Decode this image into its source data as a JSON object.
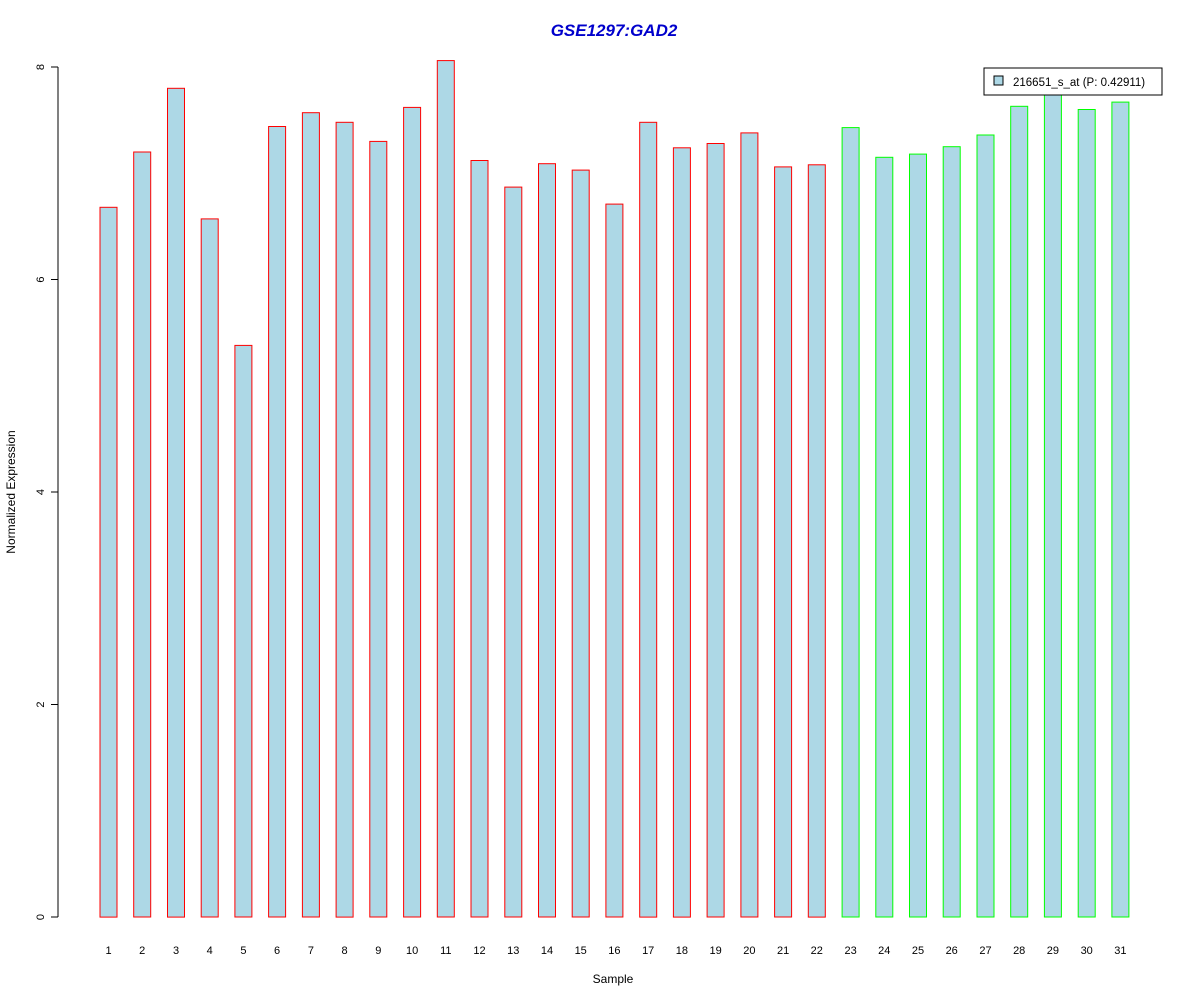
{
  "chart_data": {
    "type": "bar",
    "title": "GSE1297:GAD2",
    "xlabel": "Sample",
    "ylabel": "Normalized Expression",
    "ylim": [
      0,
      8
    ],
    "yticks": [
      0,
      2,
      4,
      6,
      8
    ],
    "categories": [
      "1",
      "2",
      "3",
      "4",
      "5",
      "6",
      "7",
      "8",
      "9",
      "10",
      "11",
      "12",
      "13",
      "14",
      "15",
      "16",
      "17",
      "18",
      "19",
      "20",
      "21",
      "22",
      "23",
      "24",
      "25",
      "26",
      "27",
      "28",
      "29",
      "30",
      "31"
    ],
    "series": [
      {
        "name": "216651_s_at (P: 0.42911)",
        "values": [
          6.68,
          7.2,
          7.8,
          6.57,
          5.38,
          7.44,
          7.57,
          7.48,
          7.3,
          7.62,
          8.06,
          7.12,
          6.87,
          7.09,
          7.03,
          6.71,
          7.48,
          7.24,
          7.28,
          7.38,
          7.06,
          7.08,
          7.43,
          7.15,
          7.18,
          7.25,
          7.36,
          7.63,
          7.75,
          7.6,
          7.67
        ]
      }
    ],
    "group_colors": [
      "#ff0000",
      "#ff0000",
      "#ff0000",
      "#ff0000",
      "#ff0000",
      "#ff0000",
      "#ff0000",
      "#ff0000",
      "#ff0000",
      "#ff0000",
      "#ff0000",
      "#ff0000",
      "#ff0000",
      "#ff0000",
      "#ff0000",
      "#ff0000",
      "#ff0000",
      "#ff0000",
      "#ff0000",
      "#ff0000",
      "#ff0000",
      "#ff0000",
      "#00ff00",
      "#00ff00",
      "#00ff00",
      "#00ff00",
      "#00ff00",
      "#00ff00",
      "#00ff00",
      "#00ff00",
      "#00ff00"
    ],
    "bar_fill": "#add8e6",
    "title_color": "#0000cc",
    "legend_position": "top-right",
    "grid": false
  }
}
